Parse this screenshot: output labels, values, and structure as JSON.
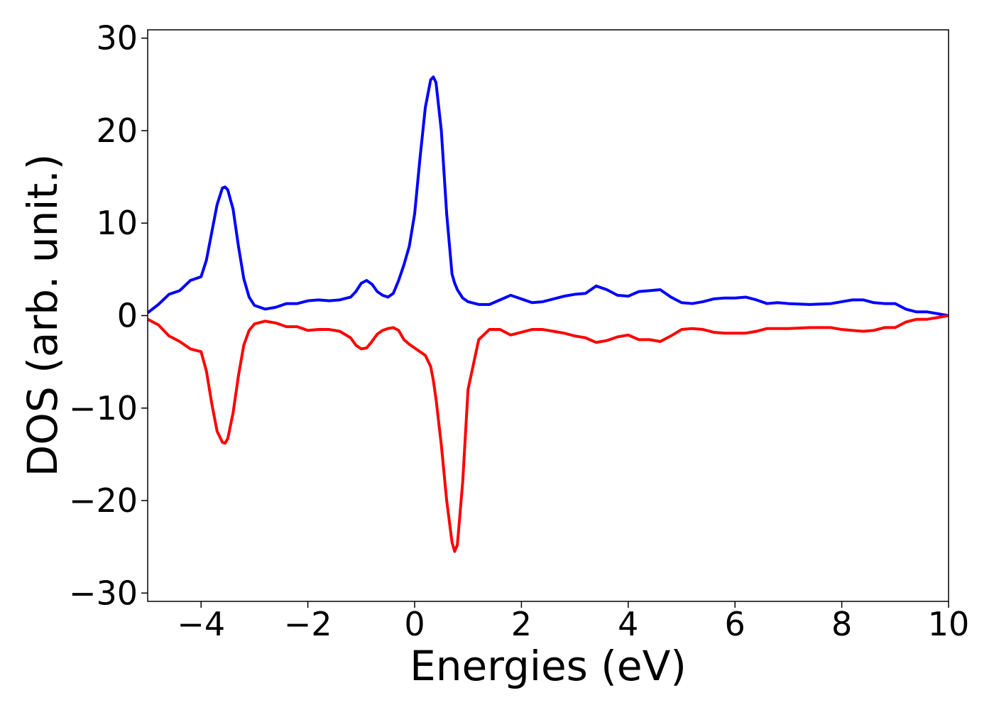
{
  "chart_data": {
    "type": "line",
    "xlabel": "Energies (eV)",
    "ylabel": "DOS (arb. unit.)",
    "x": [
      -5,
      -4.8,
      -4.6,
      -4.4,
      -4.2,
      -4.0,
      -3.9,
      -3.8,
      -3.7,
      -3.6,
      -3.55,
      -3.5,
      -3.4,
      -3.3,
      -3.2,
      -3.1,
      -3.0,
      -2.8,
      -2.6,
      -2.4,
      -2.2,
      -2.0,
      -1.8,
      -1.6,
      -1.4,
      -1.2,
      -1.1,
      -1.0,
      -0.9,
      -0.8,
      -0.7,
      -0.6,
      -0.5,
      -0.4,
      -0.3,
      -0.2,
      -0.1,
      0.0,
      0.1,
      0.2,
      0.3,
      0.35,
      0.4,
      0.5,
      0.6,
      0.7,
      0.75,
      0.8,
      0.9,
      1.0,
      1.2,
      1.4,
      1.6,
      1.8,
      2.0,
      2.2,
      2.4,
      2.6,
      2.8,
      3.0,
      3.2,
      3.4,
      3.6,
      3.8,
      4.0,
      4.2,
      4.4,
      4.6,
      4.8,
      5.0,
      5.2,
      5.4,
      5.6,
      5.8,
      6.0,
      6.2,
      6.4,
      6.6,
      6.8,
      7.0,
      7.4,
      7.8,
      8.0,
      8.2,
      8.4,
      8.6,
      8.8,
      9.0,
      9.2,
      9.4,
      9.6,
      9.8,
      10.0
    ],
    "series": [
      {
        "color": "#0000ff",
        "values": [
          0.3,
          1.2,
          2.3,
          2.7,
          3.8,
          4.2,
          6,
          9,
          12,
          13.8,
          13.9,
          13.6,
          11.5,
          7.5,
          4,
          2,
          1.1,
          0.7,
          0.9,
          1.3,
          1.3,
          1.6,
          1.7,
          1.6,
          1.7,
          2.0,
          2.6,
          3.5,
          3.8,
          3.4,
          2.6,
          2.2,
          2.0,
          2.4,
          3.8,
          5.5,
          7.5,
          11,
          17,
          22.5,
          25.5,
          25.8,
          25.2,
          20,
          11,
          4.5,
          3.5,
          2.8,
          1.9,
          1.5,
          1.2,
          1.2,
          1.7,
          2.2,
          1.8,
          1.4,
          1.5,
          1.8,
          2.1,
          2.3,
          2.4,
          3.2,
          2.8,
          2.2,
          2.1,
          2.6,
          2.7,
          2.8,
          2.0,
          1.4,
          1.3,
          1.5,
          1.8,
          1.9,
          1.9,
          2.0,
          1.7,
          1.3,
          1.4,
          1.3,
          1.2,
          1.3,
          1.5,
          1.7,
          1.7,
          1.4,
          1.3,
          1.3,
          0.7,
          0.4,
          0.4,
          0.2,
          0
        ]
      },
      {
        "color": "#ff0000",
        "values": [
          -0.4,
          -1.0,
          -2.2,
          -2.8,
          -3.6,
          -3.9,
          -6,
          -9.5,
          -12.5,
          -13.7,
          -13.8,
          -13.3,
          -10.5,
          -6.5,
          -3.2,
          -1.6,
          -0.9,
          -0.6,
          -0.8,
          -1.2,
          -1.2,
          -1.6,
          -1.5,
          -1.5,
          -1.7,
          -2.4,
          -3.2,
          -3.6,
          -3.5,
          -2.8,
          -2.0,
          -1.6,
          -1.4,
          -1.3,
          -1.6,
          -2.6,
          -3.1,
          -3.5,
          -3.9,
          -4.3,
          -5.5,
          -7,
          -9,
          -14,
          -20,
          -24.5,
          -25.5,
          -24.8,
          -18,
          -8,
          -2.6,
          -1.5,
          -1.5,
          -2.1,
          -1.8,
          -1.5,
          -1.5,
          -1.7,
          -1.9,
          -2.2,
          -2.4,
          -2.9,
          -2.7,
          -2.3,
          -2.1,
          -2.6,
          -2.6,
          -2.8,
          -2.2,
          -1.5,
          -1.4,
          -1.5,
          -1.8,
          -1.9,
          -1.9,
          -1.9,
          -1.7,
          -1.4,
          -1.4,
          -1.4,
          -1.3,
          -1.3,
          -1.5,
          -1.6,
          -1.7,
          -1.6,
          -1.3,
          -1.3,
          -0.7,
          -0.4,
          -0.4,
          -0.2,
          0
        ]
      }
    ],
    "xlim": [
      -5,
      10
    ],
    "ylim": [
      -30.9,
      30.9
    ],
    "xticks": [
      {
        "value": -4,
        "label": "−4"
      },
      {
        "value": -2,
        "label": "−2"
      },
      0,
      2,
      4,
      6,
      8,
      10
    ],
    "yticks": [
      {
        "value": -30,
        "label": "−30"
      },
      {
        "value": -20,
        "label": "−20"
      },
      {
        "value": -10,
        "label": "−10"
      },
      0,
      10,
      20,
      30
    ],
    "grid": false
  }
}
